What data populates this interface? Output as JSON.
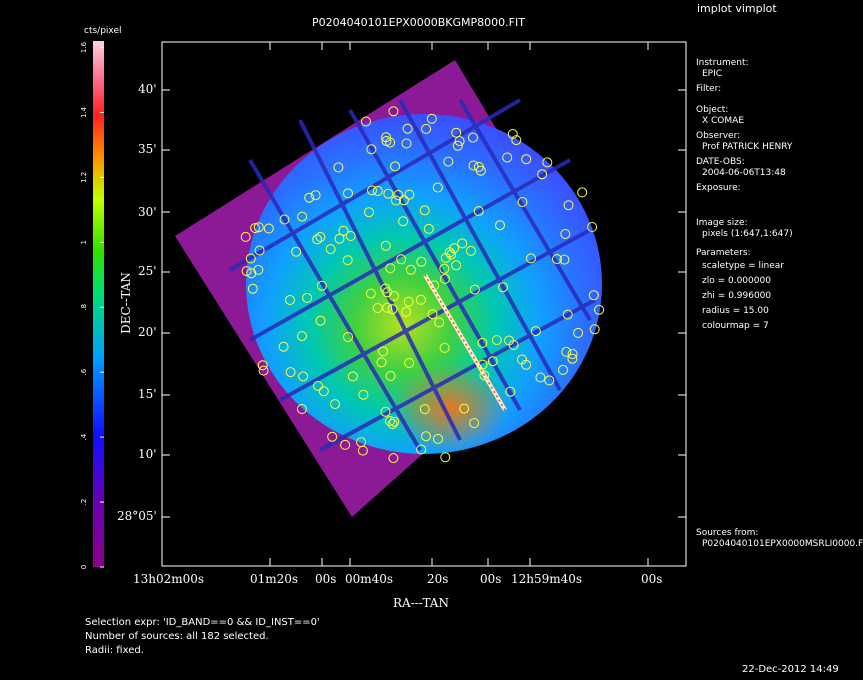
{
  "window_title": "implot vimplot",
  "image_title": "P0204040101EPX0000BKGMP8000.FIT",
  "colorbar": {
    "unit_label": "cts/pixel",
    "ticks": [
      "0",
      ".2",
      ".4",
      ".6",
      ".8",
      "1",
      "1.2",
      "1.4",
      "1.6"
    ]
  },
  "axes": {
    "xlabel": "RA---TAN",
    "ylabel": "DEC--TAN",
    "yticks": [
      "40'",
      "35'",
      "30'",
      "25'",
      "20'",
      "15'",
      "10'",
      "28°05'"
    ],
    "xticks": [
      "13h02m00s",
      "01m20s",
      "00s",
      "00m40s",
      "20s",
      "00s",
      "12h59m40s",
      "00s"
    ]
  },
  "info": {
    "instrument_label": "Instrument:",
    "instrument_value": "EPIC",
    "filter_label": "Filter:",
    "object_label": "Object:",
    "object_value": "X COMAE",
    "observer_label": "Observer:",
    "observer_value": "Prof PATRICK HENRY",
    "date_label": "DATE-OBS:",
    "date_value": "2004-06-06T13:48",
    "exposure_label": "Exposure:",
    "imagesize_label": "Image size:",
    "imagesize_value": "pixels (1:647,1:647)",
    "parameters_label": "Parameters:",
    "params": [
      "scaletype = linear",
      "zlo = 0.000000",
      "zhi = 0.996000",
      "radius = 15.00",
      "colourmap = 7"
    ],
    "sources_label": "Sources from:",
    "sources_value": "P0204040101EPX0000MSRLI0000.F"
  },
  "footer": {
    "selection": "Selection expr: 'ID_BAND==0 && ID_INST==0'",
    "number": "Number of sources: all 182 selected.",
    "radii": "Radii: fixed.",
    "timestamp": "22-Dec-2012 14:49"
  },
  "colors": {
    "background": "#000000",
    "source_circle": "#ffff40",
    "frame": "#ffffff"
  }
}
